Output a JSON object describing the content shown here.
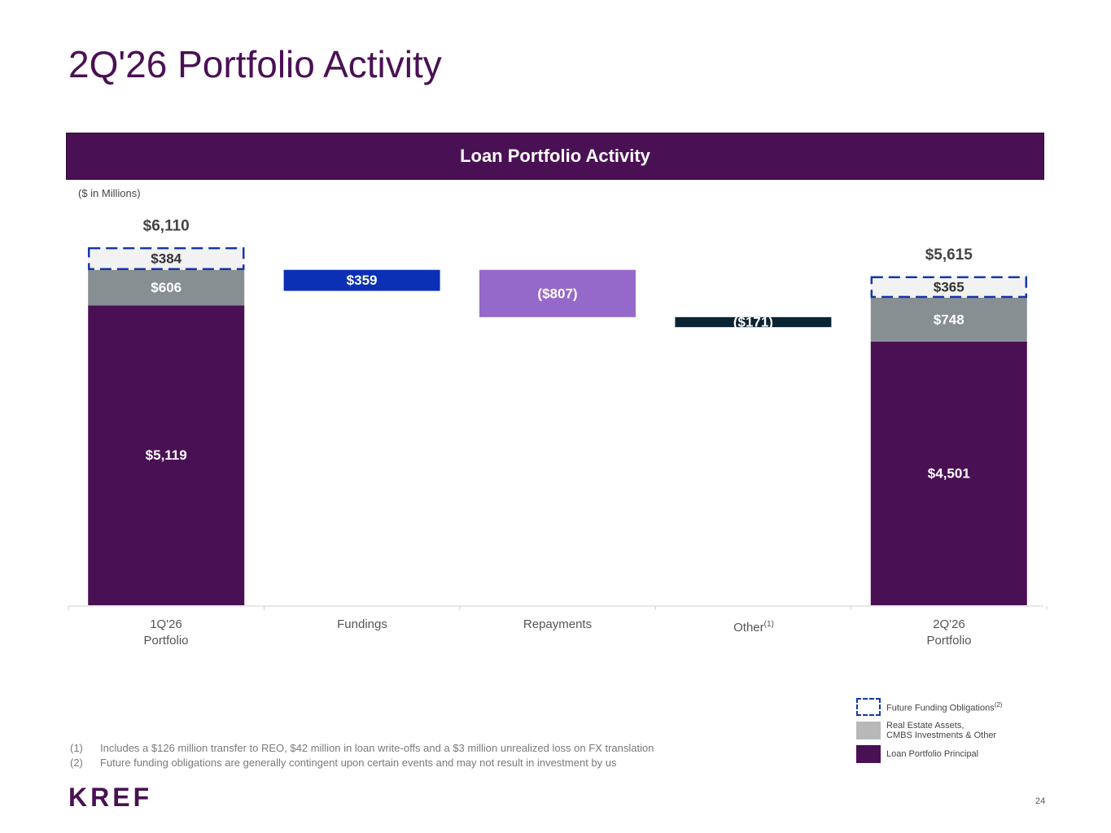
{
  "page": {
    "title": "2Q'26 Portfolio Activity",
    "banner": "Loan Portfolio Activity",
    "units": "($ in Millions)",
    "page_number": "24",
    "logo": "KREF"
  },
  "colors": {
    "loan_principal": "#4a1054",
    "real_estate": "#878f93",
    "future_funding_fill": "#f2f2f2",
    "future_funding_border": "#1537a8",
    "fundings": "#0b2fb5",
    "repayments": "#9569c9",
    "other": "#0b2433"
  },
  "chart_data": {
    "type": "bar",
    "subtype": "waterfall",
    "categories": [
      "1Q'26 Portfolio",
      "Fundings",
      "Repayments",
      "Other",
      "2Q'26 Portfolio"
    ],
    "category_lines": [
      [
        "1Q'26",
        "Portfolio"
      ],
      [
        "Fundings"
      ],
      [
        "Repayments"
      ],
      [
        "Other"
      ],
      [
        "2Q'26",
        "Portfolio"
      ]
    ],
    "category_superscripts": [
      "",
      "",
      "",
      "(1)",
      ""
    ],
    "ylim": [
      0,
      6200
    ],
    "grid": false,
    "totals": [
      {
        "category": "1Q'26 Portfolio",
        "total_label": "$6,110",
        "segments": [
          {
            "series": "Loan Portfolio Principal",
            "value": 5119,
            "label": "$5,119"
          },
          {
            "series": "Real Estate Assets, CMBS Investments & Other",
            "value": 606,
            "label": "$606"
          },
          {
            "series": "Future Funding Obligations",
            "value": 384,
            "label": "$384"
          }
        ]
      },
      {
        "category": "2Q'26 Portfolio",
        "total_label": "$5,615",
        "segments": [
          {
            "series": "Loan Portfolio Principal",
            "value": 4501,
            "label": "$4,501"
          },
          {
            "series": "Real Estate Assets, CMBS Investments & Other",
            "value": 748,
            "label": "$748"
          },
          {
            "series": "Future Funding Obligations",
            "value": 365,
            "label": "$365"
          }
        ]
      }
    ],
    "changes": [
      {
        "category": "Fundings",
        "value": 359,
        "label": "$359",
        "base": 5366
      },
      {
        "category": "Repayments",
        "value": -807,
        "label": "($807)",
        "base": 5725
      },
      {
        "category": "Other",
        "value": -171,
        "label": "($171)",
        "base": 4918
      }
    ],
    "legend": {
      "placement": "bottom-right",
      "items": [
        {
          "key": "ff",
          "label": "Future Funding Obligations",
          "sup": "(2)"
        },
        {
          "key": "re",
          "label_line1": "Real Estate Assets,",
          "label_line2": "CMBS Investments & Other"
        },
        {
          "key": "lp",
          "label": "Loan Portfolio Principal"
        }
      ]
    }
  },
  "footnotes": [
    {
      "num": "(1)",
      "text": "Includes a $126 million transfer to REO, $42 million in loan write-offs and a $3 million unrealized loss on FX translation"
    },
    {
      "num": "(2)",
      "text": "Future funding obligations are generally contingent upon certain events and may not result in investment by us"
    }
  ]
}
